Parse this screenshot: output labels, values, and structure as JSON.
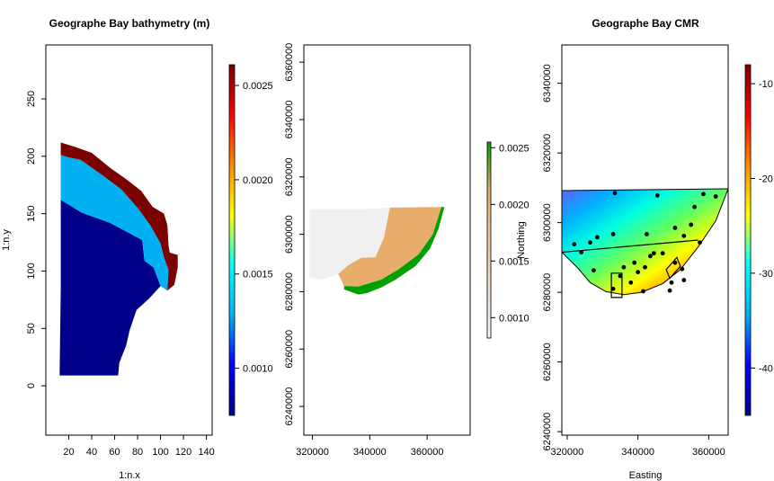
{
  "chart_data": [
    {
      "type": "heatmap",
      "title": "Geographe Bay bathymetry (m)",
      "xlabel": "1:n.x",
      "ylabel": "1:n.y",
      "xlim": [
        0,
        145
      ],
      "ylim": [
        -43,
        297
      ],
      "xticks": [
        20,
        40,
        60,
        80,
        100,
        120,
        140
      ],
      "xtick_labels": [
        "20",
        "40",
        "60",
        "80",
        "100",
        "120",
        "140"
      ],
      "yticks": [
        0,
        50,
        100,
        150,
        200,
        250
      ],
      "ytick_labels": [
        "0",
        "50",
        "100",
        "150",
        "200",
        "250"
      ],
      "bands": [
        {
          "name": "deep",
          "color": "#00008b",
          "polygon": [
            [
              12,
              9
            ],
            [
              13,
              86
            ],
            [
              13,
              162
            ],
            [
              31,
              151
            ],
            [
              56,
              142
            ],
            [
              84,
              127
            ],
            [
              86,
              109
            ],
            [
              94,
              103
            ],
            [
              100,
              87
            ],
            [
              90,
              76
            ],
            [
              79,
              66
            ],
            [
              73,
              48
            ],
            [
              70,
              35
            ],
            [
              64,
              20
            ],
            [
              63,
              9
            ]
          ]
        },
        {
          "name": "mid",
          "color": "#00b0f0",
          "polygon": [
            [
              13,
              162
            ],
            [
              31,
              151
            ],
            [
              56,
              142
            ],
            [
              84,
              127
            ],
            [
              86,
              109
            ],
            [
              94,
              103
            ],
            [
              100,
              87
            ],
            [
              106,
              83
            ],
            [
              107,
              101
            ],
            [
              103,
              112
            ],
            [
              100,
              124
            ],
            [
              91,
              140
            ],
            [
              80,
              155
            ],
            [
              66,
              171
            ],
            [
              50,
              183
            ],
            [
              36,
              193
            ],
            [
              30,
              197
            ],
            [
              20,
              199
            ],
            [
              13,
              201
            ]
          ]
        },
        {
          "name": "shallow",
          "color": "#7b0000",
          "polygon": [
            [
              13,
              201
            ],
            [
              20,
              199
            ],
            [
              30,
              197
            ],
            [
              36,
              193
            ],
            [
              50,
              183
            ],
            [
              66,
              171
            ],
            [
              80,
              155
            ],
            [
              91,
              140
            ],
            [
              100,
              124
            ],
            [
              103,
              112
            ],
            [
              107,
              101
            ],
            [
              106,
              83
            ],
            [
              112,
              88
            ],
            [
              115,
              103
            ],
            [
              115,
              114
            ],
            [
              108,
              116
            ],
            [
              107,
              122
            ],
            [
              106,
              140
            ],
            [
              103,
              150
            ],
            [
              93,
              156
            ],
            [
              83,
              170
            ],
            [
              70,
              180
            ],
            [
              56,
              190
            ],
            [
              40,
              203
            ],
            [
              26,
              208
            ],
            [
              13,
              212
            ]
          ]
        }
      ],
      "colorbar": {
        "range": [
          0.00075,
          0.00261
        ],
        "ticks": [
          0.001,
          0.0015,
          0.002,
          0.0025
        ],
        "tick_labels": [
          "0.0010",
          "0.0015",
          "0.0020",
          "0.0025"
        ],
        "colors": [
          "#00008b",
          "#0000ff",
          "#00b0f0",
          "#00ffff",
          "#ffff00",
          "#ff8c00",
          "#ff0000",
          "#7b0000"
        ]
      }
    },
    {
      "type": "heatmap",
      "title": "",
      "xlabel": "",
      "ylabel": "Northing",
      "xlim": [
        317000,
        375000
      ],
      "ylim": [
        6230000,
        6366000
      ],
      "xticks": [
        320000,
        340000,
        360000
      ],
      "xtick_labels": [
        "320000",
        "340000",
        "360000"
      ],
      "yticks": [
        6240000,
        6260000,
        6280000,
        6300000,
        6320000,
        6340000,
        6360000
      ],
      "ytick_labels": [
        "6240000",
        "6260000",
        "6280000",
        "6300000",
        "6320000",
        "6340000",
        "6360000"
      ],
      "bands": [
        {
          "name": "grey",
          "color": "#f0f0f0",
          "polygon": [
            [
              319000,
              6308800
            ],
            [
              339000,
              6308800
            ],
            [
              347000,
              6309300
            ],
            [
              345000,
              6299000
            ],
            [
              342000,
              6292000
            ],
            [
              337000,
              6291800
            ],
            [
              332500,
              6289200
            ],
            [
              329000,
              6286200
            ],
            [
              323000,
              6284200
            ],
            [
              319000,
              6285000
            ]
          ]
        },
        {
          "name": "tan",
          "color": "#e8ad6a",
          "polygon": [
            [
              347000,
              6309300
            ],
            [
              365000,
              6309500
            ],
            [
              362000,
              6300000
            ],
            [
              357000,
              6293000
            ],
            [
              350000,
              6287800
            ],
            [
              344000,
              6284200
            ],
            [
              336000,
              6281800
            ],
            [
              331000,
              6282000
            ],
            [
              329000,
              6286200
            ],
            [
              332500,
              6289200
            ],
            [
              337000,
              6291800
            ],
            [
              342000,
              6292000
            ],
            [
              345000,
              6299000
            ]
          ]
        },
        {
          "name": "green",
          "color": "#00a000",
          "polygon": [
            [
              365000,
              6309500
            ],
            [
              366000,
              6309500
            ],
            [
              364000,
              6302000
            ],
            [
              361000,
              6295000
            ],
            [
              356000,
              6289000
            ],
            [
              349000,
              6284200
            ],
            [
              344000,
              6281500
            ],
            [
              339000,
              6279500
            ],
            [
              336000,
              6279000
            ],
            [
              331000,
              6280800
            ],
            [
              331000,
              6282000
            ],
            [
              336000,
              6281800
            ],
            [
              344000,
              6284200
            ],
            [
              350000,
              6287800
            ],
            [
              357000,
              6293000
            ],
            [
              362000,
              6300000
            ]
          ]
        }
      ],
      "colorbar": {
        "range": [
          0.00082,
          0.00255
        ],
        "ticks": [
          0.001,
          0.0015,
          0.002,
          0.0025
        ],
        "tick_labels": [
          "0.0010",
          "0.0015",
          "0.0020",
          "0.0025"
        ],
        "colors": [
          "#f6f6f6",
          "#efe0d3",
          "#ecc8a0",
          "#e8ad6a",
          "#00a000"
        ]
      }
    },
    {
      "type": "heatmap",
      "title": "Geographe Bay CMR",
      "xlabel": "Easting",
      "ylabel": "",
      "xlim": [
        318500,
        365500
      ],
      "ylim": [
        6239000,
        6351000
      ],
      "xticks": [
        320000,
        340000,
        360000
      ],
      "xtick_labels": [
        "320000",
        "340000",
        "360000"
      ],
      "yticks": [
        6240000,
        6260000,
        6280000,
        6300000,
        6320000,
        6340000
      ],
      "ytick_labels": [
        "6240000",
        "6260000",
        "6280000",
        "6300000",
        "6320000",
        "6340000"
      ],
      "region": [
        [
          318500,
          6309200
        ],
        [
          365500,
          6309700
        ],
        [
          362000,
          6300500
        ],
        [
          357000,
          6293000
        ],
        [
          352000,
          6286500
        ],
        [
          347000,
          6282500
        ],
        [
          341000,
          6280000
        ],
        [
          336000,
          6279300
        ],
        [
          331000,
          6280200
        ],
        [
          326500,
          6282800
        ],
        [
          323000,
          6287000
        ],
        [
          318500,
          6291500
        ]
      ],
      "region_gradient": [
        "#6060ff",
        "#00b0ff",
        "#00ffe0",
        "#60ff60",
        "#ffff00",
        "#ff8000",
        "#ff0000"
      ],
      "lines": [
        [
          [
            318500,
            6291500
          ],
          [
            357000,
            6295000
          ]
        ]
      ],
      "boxes": [
        {
          "corners": [
            [
              332500,
              6285500
            ],
            [
              335500,
              6285500
            ],
            [
              335500,
              6278500
            ],
            [
              332500,
              6278500
            ]
          ]
        },
        {
          "corners": [
            [
              348000,
              6286500
            ],
            [
              351000,
              6290000
            ],
            [
              352000,
              6287500
            ],
            [
              349000,
              6284000
            ]
          ]
        }
      ],
      "points": [
        [
          333500,
          6308500
        ],
        [
          333000,
          6296700
        ],
        [
          328500,
          6295800
        ],
        [
          342500,
          6296700
        ],
        [
          345500,
          6307800
        ],
        [
          356000,
          6304500
        ],
        [
          358500,
          6308200
        ],
        [
          362000,
          6307500
        ],
        [
          355000,
          6299400
        ],
        [
          350500,
          6298500
        ],
        [
          353000,
          6296200
        ],
        [
          357500,
          6294300
        ],
        [
          324000,
          6291500
        ],
        [
          322000,
          6293800
        ],
        [
          326500,
          6294300
        ],
        [
          344500,
          6291200
        ],
        [
          343500,
          6290400
        ],
        [
          347000,
          6291200
        ],
        [
          342000,
          6287200
        ],
        [
          340000,
          6285800
        ],
        [
          339000,
          6288500
        ],
        [
          336000,
          6287200
        ],
        [
          338000,
          6282800
        ],
        [
          335000,
          6284700
        ],
        [
          333000,
          6281000
        ],
        [
          327500,
          6286300
        ],
        [
          341500,
          6280300
        ],
        [
          350500,
          6288500
        ],
        [
          352500,
          6286700
        ],
        [
          353000,
          6283500
        ],
        [
          349000,
          6280500
        ],
        [
          349500,
          6282800
        ]
      ],
      "colorbar": {
        "range": [
          -45,
          -8
        ],
        "ticks": [
          -10,
          -20,
          -30,
          -40
        ],
        "tick_labels": [
          "-10",
          "-20",
          "-30",
          "-40"
        ],
        "colors": [
          "#00008b",
          "#0000ff",
          "#00b0f0",
          "#00ffff",
          "#ffff00",
          "#ff8c00",
          "#ff0000",
          "#7b0000"
        ]
      }
    }
  ]
}
